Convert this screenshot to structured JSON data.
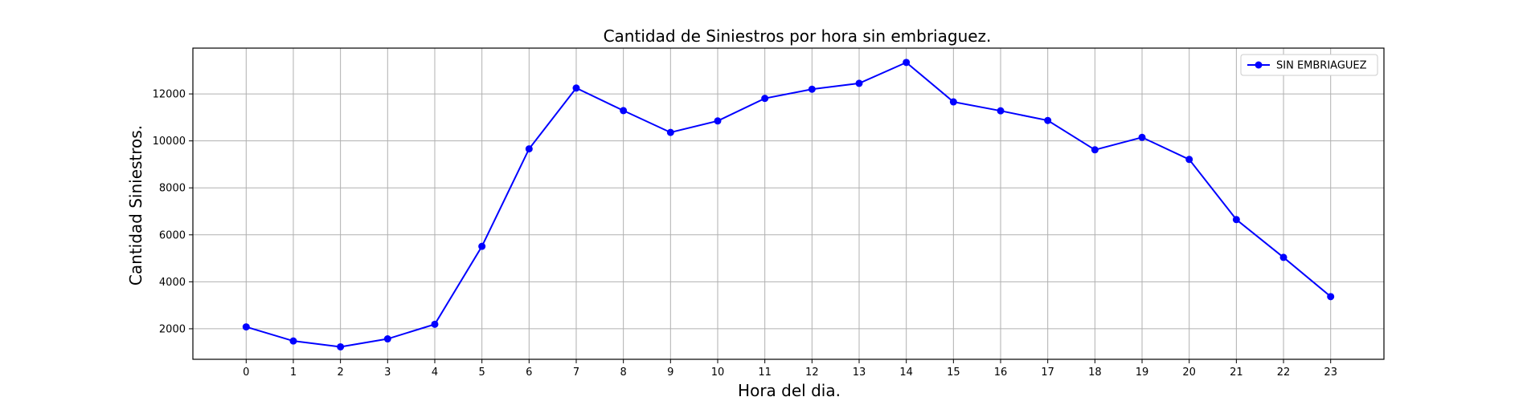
{
  "chart_data": {
    "type": "line",
    "title": "Cantidad de Siniestros por hora sin embriaguez.",
    "xlabel": "Hora del dia.",
    "ylabel": "Cantidad Siniestros.",
    "x": [
      0,
      1,
      2,
      3,
      4,
      5,
      6,
      7,
      8,
      9,
      10,
      11,
      12,
      13,
      14,
      15,
      16,
      17,
      18,
      19,
      20,
      21,
      22,
      23
    ],
    "x_tick_labels": [
      "0",
      "1",
      "2",
      "3",
      "4",
      "5",
      "6",
      "7",
      "8",
      "9",
      "10",
      "11",
      "12",
      "13",
      "14",
      "15",
      "16",
      "17",
      "18",
      "19",
      "20",
      "21",
      "22",
      "23"
    ],
    "xlim": [
      -1.13,
      24.13
    ],
    "ylim": [
      700,
      13950
    ],
    "y_ticks": [
      2000,
      4000,
      6000,
      8000,
      10000,
      12000
    ],
    "y_tick_labels": [
      "2000",
      "4000",
      "6000",
      "8000",
      "10000",
      "12000"
    ],
    "grid": true,
    "legend_position": "top-right",
    "series": [
      {
        "name": "SIN EMBRIAGUEZ",
        "color": "#0000ff",
        "marker": "circle",
        "values": [
          2080,
          1480,
          1230,
          1570,
          2190,
          5510,
          9660,
          12250,
          11290,
          10360,
          10850,
          11810,
          12200,
          12450,
          13340,
          11660,
          11280,
          10870,
          9620,
          10150,
          9210,
          6650,
          5040,
          3370
        ]
      }
    ]
  }
}
